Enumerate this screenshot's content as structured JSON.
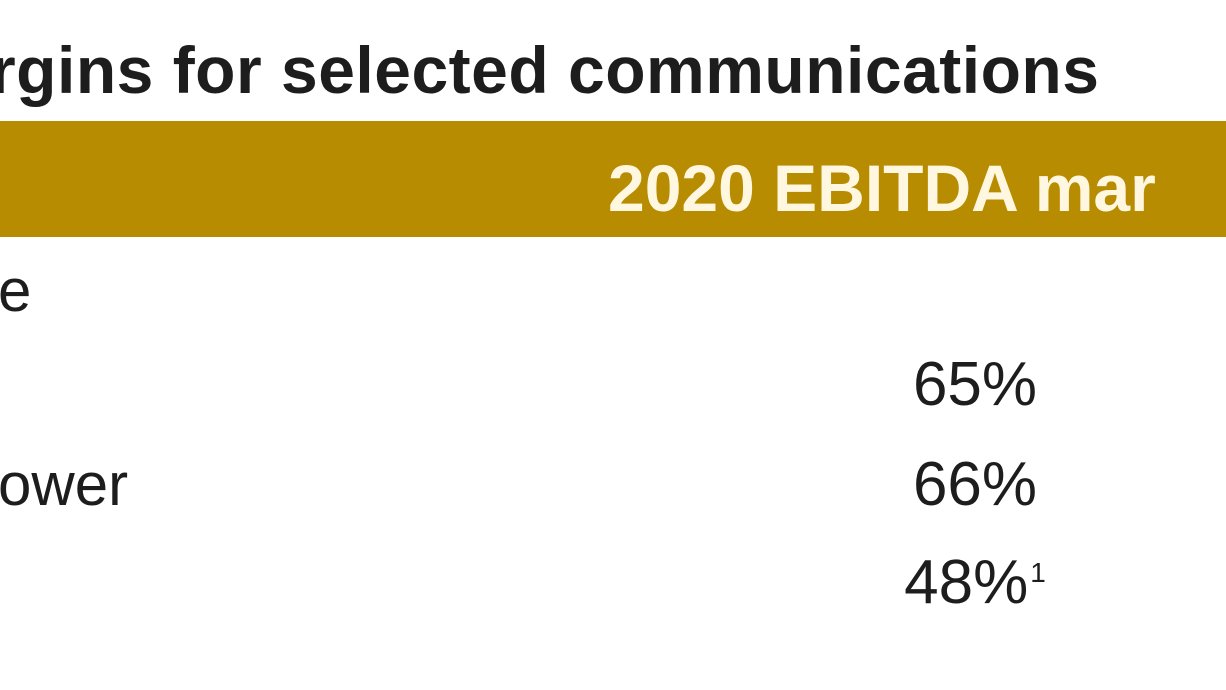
{
  "title": "rgins for selected communications",
  "table": {
    "header": "2020 EBITDA mar",
    "rows": [
      {
        "label": "e",
        "value": "",
        "footnote": ""
      },
      {
        "label": "",
        "value": "65%",
        "footnote": ""
      },
      {
        "label": "ower",
        "value": "66%",
        "footnote": ""
      },
      {
        "label": "",
        "value": "48%",
        "footnote": "1"
      }
    ]
  },
  "colors": {
    "header_band": "#b88c00",
    "header_text": "#fff7e0",
    "body_text": "#1d1d1d"
  }
}
